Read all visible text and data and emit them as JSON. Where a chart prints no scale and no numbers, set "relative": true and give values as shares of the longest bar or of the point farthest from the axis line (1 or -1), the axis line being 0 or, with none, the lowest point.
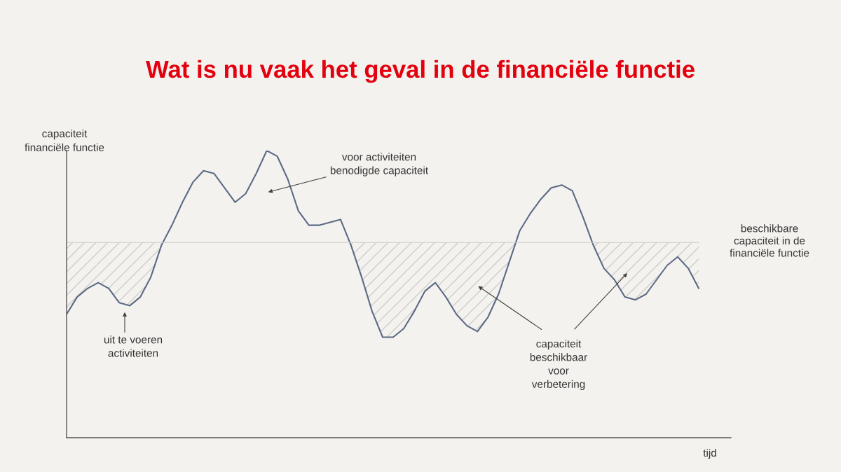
{
  "chart_data": {
    "type": "line",
    "title": "Wat is nu vaak het geval in de financiële functie",
    "ylabel": "capaciteit\nfinanciële functie",
    "xlabel": "tijd",
    "relative": true,
    "categories": [
      null,
      null,
      null,
      null,
      null,
      null,
      null,
      null,
      null,
      null,
      null,
      null,
      null,
      null,
      null,
      null,
      null,
      null,
      null,
      null,
      null,
      null,
      null,
      null,
      null,
      null,
      null,
      null,
      null,
      null,
      null,
      null,
      null,
      null,
      null,
      null,
      null,
      null,
      null,
      null,
      null,
      null,
      null,
      null,
      null,
      null,
      null,
      null,
      null,
      null,
      null,
      null,
      null,
      null,
      null,
      null,
      null,
      null,
      null,
      null,
      null
    ],
    "series": [
      {
        "color": "#5b6a85",
        "values": [
          0.43,
          0.49,
          0.52,
          0.54,
          0.52,
          0.47,
          0.46,
          0.49,
          0.56,
          0.67,
          0.74,
          0.82,
          0.89,
          0.93,
          0.92,
          0.87,
          0.82,
          0.85,
          0.92,
          1.0,
          0.98,
          0.9,
          0.79,
          0.74,
          0.74,
          0.75,
          0.76,
          0.67,
          0.56,
          0.44,
          0.35,
          0.35,
          0.38,
          0.44,
          0.51,
          0.54,
          0.49,
          0.43,
          0.39,
          0.37,
          0.42,
          0.5,
          0.61,
          0.72,
          0.78,
          0.83,
          0.87,
          0.88,
          0.86,
          0.77,
          0.67,
          0.59,
          0.55,
          0.49,
          0.48,
          0.5,
          0.55,
          0.6,
          0.63,
          0.59,
          0.52
        ]
      }
    ],
    "ref_lines": [
      {
        "axis": "y",
        "value": 0.68,
        "label": "beschikbare\ncapaciteit in de\nfinanciële functie",
        "color": "#cfcdc8"
      }
    ],
    "annotations": [
      "voor activiteiten\nbenodigde capaciteit",
      "uit te voeren\nactiviteiten",
      "capaciteit\nbeschikbaar\nvoor\nverbetering"
    ],
    "marker": "none"
  }
}
